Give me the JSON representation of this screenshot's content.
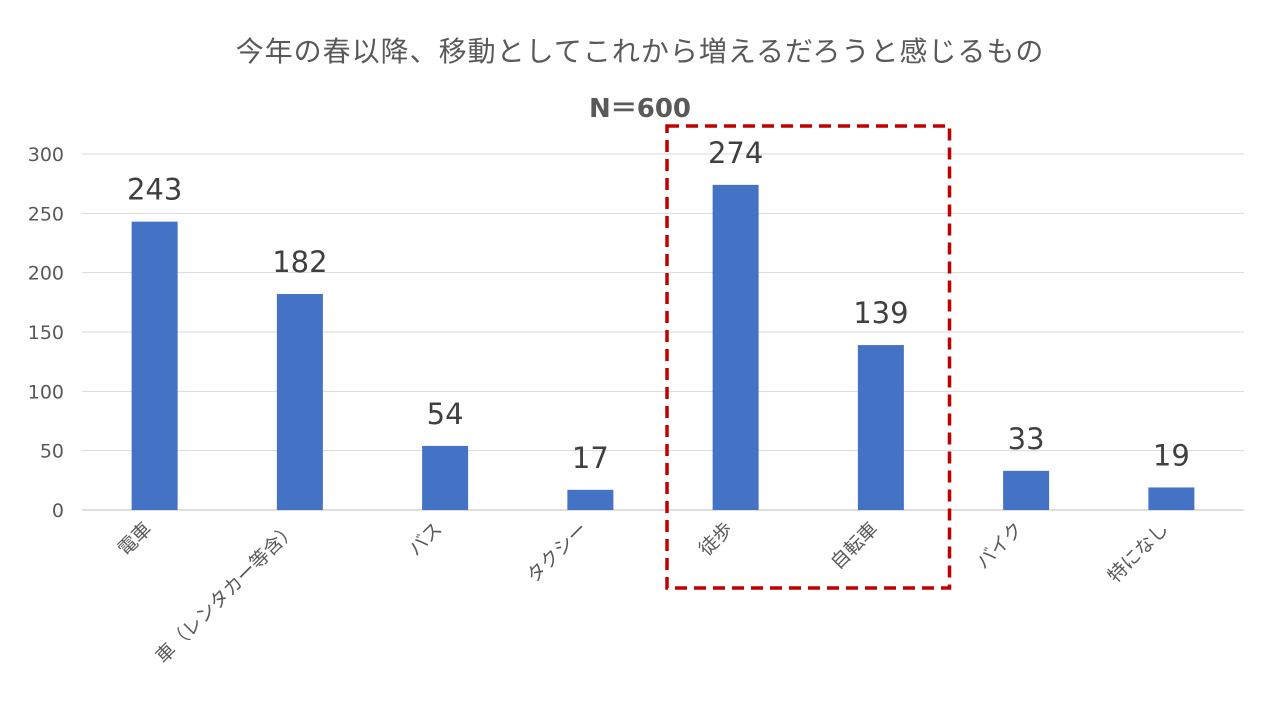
{
  "chart_data": {
    "type": "bar",
    "title": "今年の春以降、移動としてこれから増えるだろうと感じるもの",
    "subtitle": "N＝600",
    "categories": [
      "電車",
      "車（レンタカー等含）",
      "バス",
      "タクシー",
      "徒歩",
      "自転車",
      "バイク",
      "特になし"
    ],
    "values": [
      243,
      182,
      54,
      17,
      274,
      139,
      33,
      19
    ],
    "ylim": [
      0,
      300
    ],
    "yticks": [
      0,
      50,
      100,
      150,
      200,
      250,
      300
    ],
    "grid": true,
    "legend": "none",
    "bar_color": "#4472C4",
    "highlight": {
      "categories": [
        "徒歩",
        "自転車"
      ],
      "style": "dashed-box",
      "color": "#C00000"
    }
  }
}
